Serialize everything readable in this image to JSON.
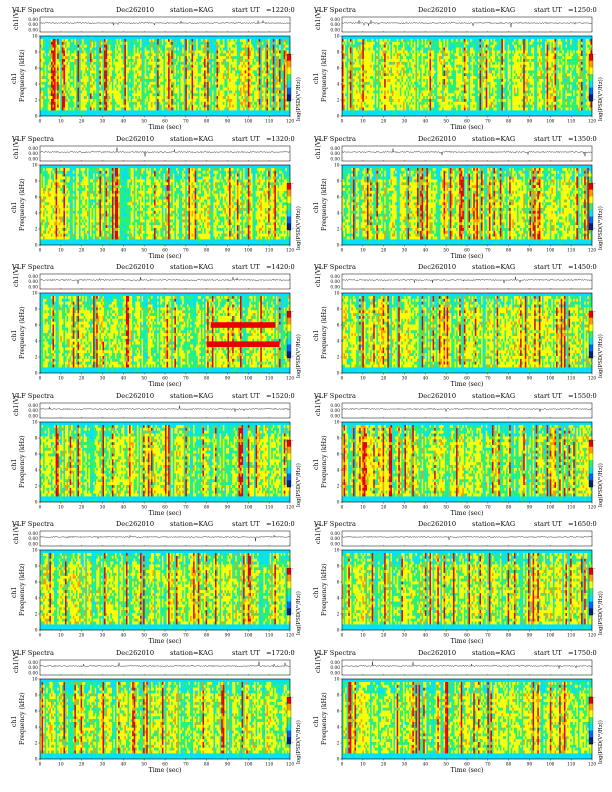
{
  "page": {
    "title": "VLF Spectra grid"
  },
  "chart_data": [
    {
      "type": "heatmap",
      "title": "VLF Spectra",
      "date": "Dec262010",
      "station": "station=KAG",
      "start_label": "start UT",
      "start_time": "=1220:0",
      "channel_label": "ch1",
      "ylabel": "Frequency (kHz)",
      "xlabel": "Time (sec)",
      "waveform_ylabel": "ch1(V)",
      "waveform_ticks": [
        "0.00",
        "0.00",
        "0.00"
      ],
      "x_ticks": [
        0,
        10,
        20,
        30,
        40,
        50,
        60,
        70,
        80,
        90,
        100,
        110,
        120
      ],
      "y_ticks": [
        0,
        2,
        4,
        6,
        8,
        10
      ],
      "xlim": [
        0,
        120
      ],
      "ylim": [
        0,
        10
      ],
      "colorbar_label": "log(PSD(V²/Hz))",
      "colorbar_ticks": [
        "-",
        "-"
      ],
      "noise_bands_khz": []
    },
    {
      "type": "heatmap",
      "title": "VLF Spectra",
      "date": "Dec262010",
      "station": "station=KAG",
      "start_label": "start UT",
      "start_time": "=1250:0",
      "channel_label": "ch1",
      "ylabel": "Frequency (kHz)",
      "xlabel": "Time (sec)",
      "waveform_ylabel": "ch1(V)",
      "waveform_ticks": [
        "0.00",
        "0.00",
        "0.00"
      ],
      "x_ticks": [
        0,
        10,
        20,
        30,
        40,
        50,
        60,
        70,
        80,
        90,
        100,
        110,
        120
      ],
      "y_ticks": [
        0,
        2,
        4,
        6,
        8,
        10
      ],
      "xlim": [
        0,
        120
      ],
      "ylim": [
        0,
        10
      ],
      "colorbar_label": "log(PSD(V²/Hz))",
      "colorbar_ticks": [
        "-",
        "-"
      ],
      "noise_bands_khz": []
    },
    {
      "type": "heatmap",
      "title": "VLF Spectra",
      "date": "Dec262010",
      "station": "station=KAG",
      "start_label": "start UT",
      "start_time": "=1320:0",
      "channel_label": "ch1",
      "ylabel": "Frequency (kHz)",
      "xlabel": "Time (sec)",
      "waveform_ylabel": "ch1(V)",
      "waveform_ticks": [
        "0.00",
        "0.00",
        "0.00"
      ],
      "x_ticks": [
        0,
        10,
        20,
        30,
        40,
        50,
        60,
        70,
        80,
        90,
        100,
        110,
        120
      ],
      "y_ticks": [
        0,
        2,
        4,
        6,
        8,
        10
      ],
      "xlim": [
        0,
        120
      ],
      "ylim": [
        0,
        10
      ],
      "colorbar_label": "log(PSD(V²/Hz))",
      "colorbar_ticks": [
        "-",
        "-"
      ],
      "noise_bands_khz": []
    },
    {
      "type": "heatmap",
      "title": "VLF Spectra",
      "date": "Dec262010",
      "station": "station=KAG",
      "start_label": "start UT",
      "start_time": "=1350:0",
      "channel_label": "ch1",
      "ylabel": "Frequency (kHz)",
      "xlabel": "Time (sec)",
      "waveform_ylabel": "ch1(V)",
      "waveform_ticks": [
        "0.00",
        "0.00",
        "0.00"
      ],
      "x_ticks": [
        0,
        10,
        20,
        30,
        40,
        50,
        60,
        70,
        80,
        90,
        100,
        110,
        120
      ],
      "y_ticks": [
        0,
        2,
        4,
        6,
        8,
        10
      ],
      "xlim": [
        0,
        120
      ],
      "ylim": [
        0,
        10
      ],
      "colorbar_label": "log(PSD(V²/Hz))",
      "colorbar_ticks": [
        "-",
        "-"
      ],
      "noise_bands_khz": []
    },
    {
      "type": "heatmap",
      "title": "VLF Spectra",
      "date": "Dec262010",
      "station": "station=KAG",
      "start_label": "start UT",
      "start_time": "=1420:0",
      "channel_label": "ch1",
      "ylabel": "Frequency (kHz)",
      "xlabel": "Time (sec)",
      "waveform_ylabel": "ch1(V)",
      "waveform_ticks": [
        "0.00",
        "0.00",
        "0.00"
      ],
      "x_ticks": [
        0,
        10,
        20,
        30,
        40,
        50,
        60,
        70,
        80,
        90,
        100,
        110,
        120
      ],
      "y_ticks": [
        0,
        2,
        4,
        6,
        8,
        10
      ],
      "xlim": [
        0,
        120
      ],
      "ylim": [
        0,
        10
      ],
      "colorbar_label": "log(PSD(V²/Hz))",
      "colorbar_ticks": [
        "-",
        "-"
      ],
      "noise_bands_khz": [
        {
          "freq_khz": 6.0,
          "t_start": 82,
          "t_end": 113
        },
        {
          "freq_khz": 3.6,
          "t_start": 80,
          "t_end": 115
        }
      ]
    },
    {
      "type": "heatmap",
      "title": "VLF Spectra",
      "date": "Dec262010",
      "station": "station=KAG",
      "start_label": "start UT",
      "start_time": "=1450:0",
      "channel_label": "ch1",
      "ylabel": "Frequency (kHz)",
      "xlabel": "Time (sec)",
      "waveform_ylabel": "ch1(V)",
      "waveform_ticks": [
        "0.00",
        "0.00",
        "0.00"
      ],
      "x_ticks": [
        0,
        10,
        20,
        30,
        40,
        50,
        60,
        70,
        80,
        90,
        100,
        110,
        120
      ],
      "y_ticks": [
        0,
        2,
        4,
        6,
        8,
        10
      ],
      "xlim": [
        0,
        120
      ],
      "ylim": [
        0,
        10
      ],
      "colorbar_label": "log(PSD(V²/Hz))",
      "colorbar_ticks": [
        "-",
        "-"
      ],
      "noise_bands_khz": []
    },
    {
      "type": "heatmap",
      "title": "VLF Spectra",
      "date": "Dec262010",
      "station": "station=KAG",
      "start_label": "start UT",
      "start_time": "=1520:0",
      "channel_label": "ch1",
      "ylabel": "Frequency (kHz)",
      "xlabel": "Time (sec)",
      "waveform_ylabel": "ch1(V)",
      "waveform_ticks": [
        "0.00",
        "0.00",
        "0.00"
      ],
      "x_ticks": [
        0,
        10,
        20,
        30,
        40,
        50,
        60,
        70,
        80,
        90,
        100,
        110,
        120
      ],
      "y_ticks": [
        0,
        2,
        4,
        6,
        8,
        10
      ],
      "xlim": [
        0,
        120
      ],
      "ylim": [
        0,
        10
      ],
      "colorbar_label": "log(PSD(V²/Hz))",
      "colorbar_ticks": [
        "-",
        "-"
      ],
      "noise_bands_khz": []
    },
    {
      "type": "heatmap",
      "title": "VLF Spectra",
      "date": "Dec262010",
      "station": "station=KAG",
      "start_label": "start UT",
      "start_time": "=1550:0",
      "channel_label": "ch1",
      "ylabel": "Frequency (kHz)",
      "xlabel": "Time (sec)",
      "waveform_ylabel": "ch1(V)",
      "waveform_ticks": [
        "0.00",
        "0.00",
        "0.00"
      ],
      "x_ticks": [
        0,
        10,
        20,
        30,
        40,
        50,
        60,
        70,
        80,
        90,
        100,
        110,
        120
      ],
      "y_ticks": [
        0,
        2,
        4,
        6,
        8,
        10
      ],
      "xlim": [
        0,
        120
      ],
      "ylim": [
        0,
        10
      ],
      "colorbar_label": "log(PSD(V²/Hz))",
      "colorbar_ticks": [
        "-",
        "-"
      ],
      "noise_bands_khz": []
    },
    {
      "type": "heatmap",
      "title": "VLF Spectra",
      "date": "Dec262010",
      "station": "station=KAG",
      "start_label": "start UT",
      "start_time": "=1620:0",
      "channel_label": "ch1",
      "ylabel": "Frequency (kHz)",
      "xlabel": "Time (sec)",
      "waveform_ylabel": "ch1(V)",
      "waveform_ticks": [
        "0.00",
        "0.00",
        "0.00"
      ],
      "x_ticks": [
        0,
        10,
        20,
        30,
        40,
        50,
        60,
        70,
        80,
        90,
        100,
        110,
        120
      ],
      "y_ticks": [
        0,
        2,
        4,
        6,
        8,
        10
      ],
      "xlim": [
        0,
        120
      ],
      "ylim": [
        0,
        10
      ],
      "colorbar_label": "log(PSD(V²/Hz))",
      "colorbar_ticks": [
        "-",
        "-"
      ],
      "noise_bands_khz": []
    },
    {
      "type": "heatmap",
      "title": "VLF Spectra",
      "date": "Dec262010",
      "station": "station=KAG",
      "start_label": "start UT",
      "start_time": "=1650:0",
      "channel_label": "ch1",
      "ylabel": "Frequency (kHz)",
      "xlabel": "Time (sec)",
      "waveform_ylabel": "ch1(V)",
      "waveform_ticks": [
        "0.00",
        "0.00",
        "0.00"
      ],
      "x_ticks": [
        0,
        10,
        20,
        30,
        40,
        50,
        60,
        70,
        80,
        90,
        100,
        110,
        120
      ],
      "y_ticks": [
        0,
        2,
        4,
        6,
        8,
        10
      ],
      "xlim": [
        0,
        120
      ],
      "ylim": [
        0,
        10
      ],
      "colorbar_label": "log(PSD(V²/Hz))",
      "colorbar_ticks": [
        "-",
        "-"
      ],
      "noise_bands_khz": []
    },
    {
      "type": "heatmap",
      "title": "VLF Spectra",
      "date": "Dec262010",
      "station": "station=KAG",
      "start_label": "start UT",
      "start_time": "=1720:0",
      "channel_label": "ch1",
      "ylabel": "Frequency (kHz)",
      "xlabel": "Time (sec)",
      "waveform_ylabel": "ch1(V)",
      "waveform_ticks": [
        "0.00",
        "0.00",
        "0.00"
      ],
      "x_ticks": [
        0,
        10,
        20,
        30,
        40,
        50,
        60,
        70,
        80,
        90,
        100,
        110,
        120
      ],
      "y_ticks": [
        0,
        2,
        4,
        6,
        8,
        10
      ],
      "xlim": [
        0,
        120
      ],
      "ylim": [
        0,
        10
      ],
      "colorbar_label": "log(PSD(V²/Hz))",
      "colorbar_ticks": [
        "-",
        "-"
      ],
      "noise_bands_khz": []
    },
    {
      "type": "heatmap",
      "title": "VLF Spectra",
      "date": "Dec262010",
      "station": "station=KAG",
      "start_label": "start UT",
      "start_time": "=1750:0",
      "channel_label": "ch1",
      "ylabel": "Frequency (kHz)",
      "xlabel": "Time (sec)",
      "waveform_ylabel": "ch1(V)",
      "waveform_ticks": [
        "0.00",
        "0.00",
        "0.00"
      ],
      "x_ticks": [
        0,
        10,
        20,
        30,
        40,
        50,
        60,
        70,
        80,
        90,
        100,
        110,
        120
      ],
      "y_ticks": [
        0,
        2,
        4,
        6,
        8,
        10
      ],
      "xlim": [
        0,
        120
      ],
      "ylim": [
        0,
        10
      ],
      "colorbar_label": "log(PSD(V²/Hz))",
      "colorbar_ticks": [
        "-",
        "-"
      ],
      "noise_bands_khz": []
    }
  ],
  "colors": {
    "colormap": [
      "#00208c",
      "#0064ff",
      "#00e0ff",
      "#28f07a",
      "#ffff00",
      "#ff9a00",
      "#e80000"
    ],
    "background_band": "#36f2e8",
    "waveform": "#222222"
  }
}
